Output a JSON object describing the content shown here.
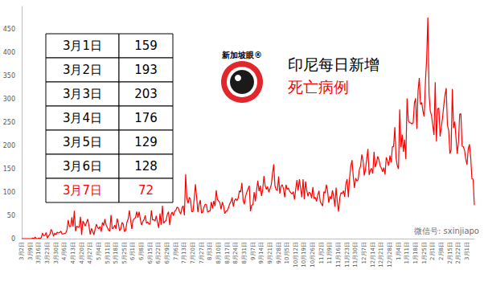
{
  "chart_data": {
    "type": "line",
    "title": "印尼每日新增\n死亡病例",
    "color": "#ff0000",
    "categories": [
      "3月2日",
      null,
      null,
      null,
      null,
      null,
      null,
      "3月9日",
      null,
      null,
      null,
      null,
      null,
      null,
      "3月16日",
      null,
      null,
      null,
      null,
      null,
      null,
      "3月23日",
      null,
      null,
      null,
      null,
      null,
      null,
      "3月30日",
      null,
      null,
      null,
      null,
      null,
      null,
      "4月6日",
      null,
      null,
      null,
      null,
      null,
      null,
      "4月13日",
      null,
      null,
      null,
      null,
      null,
      null,
      "4月20日",
      null,
      null,
      null,
      null,
      null,
      null,
      "4月27日",
      null,
      null,
      null,
      null,
      null,
      null,
      "5月4日",
      null,
      null,
      null,
      null,
      null,
      null,
      "5月11日",
      null,
      null,
      null,
      null,
      null,
      null,
      "5月18日",
      null,
      null,
      null,
      null,
      null,
      null,
      "5月25日",
      null,
      null,
      null,
      null,
      null,
      null,
      "6月1日",
      null,
      null,
      null,
      null,
      null,
      null,
      "6月8日",
      null,
      null,
      null,
      null,
      null,
      null,
      "6月15日",
      null,
      null,
      null,
      null,
      null,
      null,
      "6月22日",
      null,
      null,
      null,
      null,
      null,
      null,
      "6月29日",
      null,
      null,
      null,
      null,
      null,
      null,
      "7月6日",
      null,
      null,
      null,
      null,
      null,
      null,
      "7月13日",
      null,
      null,
      null,
      null,
      null,
      null,
      "7月20日",
      null,
      null,
      null,
      null,
      null,
      null,
      "7月27日",
      null,
      null,
      null,
      null,
      null,
      null,
      "8月3日",
      null,
      null,
      null,
      null,
      null,
      null,
      "8月10日",
      null,
      null,
      null,
      null,
      null,
      null,
      "8月17日",
      null,
      null,
      null,
      null,
      null,
      null,
      "8月24日",
      null,
      null,
      null,
      null,
      null,
      null,
      "8月31日",
      null,
      null,
      null,
      null,
      null,
      null,
      "9月7日",
      null,
      null,
      null,
      null,
      null,
      null,
      "9月14日",
      null,
      null,
      null,
      null,
      null,
      null,
      "9月21日",
      null,
      null,
      null,
      null,
      null,
      null,
      "9月28日",
      null,
      null,
      null,
      null,
      null,
      null,
      "10月5日",
      null,
      null,
      null,
      null,
      null,
      null,
      "10月12日",
      null,
      null,
      null,
      null,
      null,
      null,
      "10月19日",
      null,
      null,
      null,
      null,
      null,
      null,
      "10月26日",
      null,
      null,
      null,
      null,
      null,
      null,
      "11月2日",
      null,
      null,
      null,
      null,
      null,
      null,
      "11月9日",
      null,
      null,
      null,
      null,
      null,
      null,
      "11月16日",
      null,
      null,
      null,
      null,
      null,
      null,
      "11月23日",
      null,
      null,
      null,
      null,
      null,
      null,
      "11月30日",
      null,
      null,
      null,
      null,
      null,
      null,
      "12月7日",
      null,
      null,
      null,
      null,
      null,
      null,
      "12月14日",
      null,
      null,
      null,
      null,
      null,
      null,
      "12月21日",
      null,
      null,
      null,
      null,
      null,
      null,
      "12月28日",
      null,
      null,
      null,
      null,
      null,
      null,
      "1月4日",
      null,
      null,
      null,
      null,
      null,
      null,
      "1月11日",
      null,
      null,
      null,
      null,
      null,
      null,
      "1月18日",
      null,
      null,
      null,
      null,
      null,
      null,
      "1月25日",
      null,
      null,
      null,
      null,
      null,
      null,
      "2月1日",
      null,
      null,
      null,
      null,
      null,
      null,
      "2月8日",
      null,
      null,
      null,
      null,
      null,
      null,
      "2月15日",
      null,
      null,
      null,
      null,
      null,
      null,
      "2月22日",
      null,
      null,
      null,
      null,
      null,
      null,
      "3月1日",
      null,
      null,
      null,
      null,
      null,
      null
    ],
    "values": [
      0,
      0,
      0,
      0,
      0,
      0,
      0,
      0,
      0,
      1,
      0,
      3,
      0,
      0,
      1,
      0,
      2,
      12,
      6,
      7,
      13,
      1,
      6,
      9,
      20,
      15,
      5,
      12,
      8,
      14,
      12,
      13,
      16,
      10,
      10,
      11,
      12,
      19,
      40,
      26,
      26,
      46,
      26,
      60,
      16,
      27,
      25,
      25,
      47,
      8,
      38,
      33,
      27,
      35,
      42,
      27,
      9,
      22,
      16,
      8,
      20,
      31,
      24,
      21,
      26,
      15,
      35,
      28,
      42,
      29,
      24,
      18,
      16,
      51,
      21,
      23,
      29,
      21,
      43,
      33,
      17,
      21,
      35,
      31,
      15,
      18,
      35,
      42,
      61,
      40,
      21,
      39,
      43,
      45,
      58,
      45,
      58,
      41,
      29,
      37,
      41,
      50,
      33,
      36,
      31,
      32,
      61,
      40,
      41,
      38,
      49,
      35,
      23,
      54,
      30,
      71,
      33,
      37,
      39,
      52,
      58,
      29,
      51,
      57,
      49,
      59,
      61,
      68,
      66,
      58,
      53,
      66,
      71,
      50,
      139,
      87,
      76,
      89,
      84,
      58,
      58,
      85,
      117,
      89,
      57,
      74,
      83,
      55,
      57,
      68,
      74,
      73,
      57,
      59,
      60,
      79,
      65,
      81,
      70,
      104,
      84,
      81,
      77,
      63,
      79,
      70,
      54,
      59,
      60,
      66,
      75,
      79,
      89,
      69,
      82,
      86,
      82,
      88,
      103,
      100,
      120,
      82,
      74,
      91,
      100,
      107,
      114,
      59,
      72,
      73,
      100,
      80,
      104,
      125,
      102,
      114,
      92,
      105,
      135,
      114,
      106,
      112,
      100,
      108,
      116,
      140,
      160,
      114,
      105,
      104,
      134,
      97,
      113,
      116,
      107,
      89,
      116,
      106,
      109,
      102,
      99,
      96,
      101,
      84,
      107,
      126,
      104,
      128,
      108,
      89,
      128,
      85,
      123,
      104,
      91,
      100,
      98,
      87,
      111,
      86,
      89,
      80,
      94,
      103,
      80,
      75,
      70,
      101,
      98,
      116,
      103,
      77,
      91,
      85,
      104,
      91,
      69,
      110,
      79,
      58,
      88,
      99,
      97,
      103,
      90,
      118,
      128,
      89,
      130,
      156,
      169,
      135,
      109,
      130,
      124,
      127,
      149,
      156,
      181,
      169,
      136,
      149,
      171,
      193,
      137,
      148,
      151,
      140,
      187,
      154,
      163,
      177,
      170,
      157,
      152,
      144,
      153,
      138,
      175,
      168,
      157,
      179,
      164,
      198,
      198,
      240,
      174,
      157,
      150,
      278,
      197,
      224,
      187,
      213,
      171,
      302,
      254,
      250,
      249,
      247,
      250,
      292,
      302,
      236,
      319,
      346,
      289,
      293,
      274,
      263,
      336,
      387,
      476,
      310,
      274,
      265,
      244,
      223,
      337,
      209,
      279,
      281,
      220,
      240,
      260,
      287,
      309,
      324,
      244,
      233,
      183,
      191,
      322,
      238,
      252,
      216,
      183,
      208,
      268,
      269,
      199,
      198,
      190,
      171,
      159,
      193,
      203,
      176,
      129,
      128,
      72
    ],
    "ylim": [
      0,
      500
    ],
    "yticks": [
      0,
      50,
      100,
      150,
      200,
      250,
      300,
      350,
      400,
      450
    ],
    "grid": false
  },
  "table": {
    "rows": [
      [
        "3月1日",
        159
      ],
      [
        "3月2日",
        193
      ],
      [
        "3月3日",
        203
      ],
      [
        "3月4日",
        176
      ],
      [
        "3月5日",
        129
      ],
      [
        "3月6日",
        128
      ],
      [
        "3月7日",
        72
      ]
    ]
  },
  "logo": "新加坡眼®",
  "watermark": "微信号: sxinjiapo"
}
